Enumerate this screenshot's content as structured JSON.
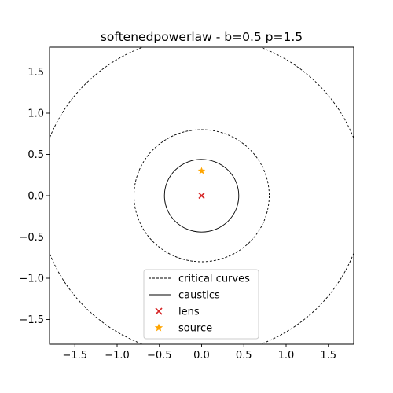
{
  "chart_data": {
    "type": "scatter",
    "title": "softenedpowerlaw - b=0.5 p=1.5",
    "xlabel": "",
    "ylabel": "",
    "xlim": [
      -1.8,
      1.8
    ],
    "ylim": [
      -1.8,
      1.8
    ],
    "grid": false,
    "legend_placement": "lower center",
    "x_ticks": [
      -1.5,
      -1.0,
      -0.5,
      0.0,
      0.5,
      1.0,
      1.5
    ],
    "y_ticks": [
      -1.5,
      -1.0,
      -0.5,
      0.0,
      0.5,
      1.0,
      1.5
    ],
    "x_tick_labels": [
      "−1.5",
      "−1.0",
      "−0.5",
      "0.0",
      "0.5",
      "1.0",
      "1.5"
    ],
    "y_tick_labels": [
      "−1.5",
      "−1.0",
      "−0.5",
      "0.0",
      "0.5",
      "1.0",
      "1.5"
    ],
    "critical_curves": {
      "center": [
        0,
        0
      ],
      "radii": [
        0.8,
        1.93
      ],
      "style": "dashed",
      "color": "#000000"
    },
    "caustics": {
      "center": [
        0,
        0
      ],
      "radii": [
        0.44
      ],
      "style": "solid",
      "color": "#000000"
    },
    "lens": {
      "x": 0.0,
      "y": 0.0,
      "marker": "x",
      "color": "#d62728"
    },
    "source": {
      "x": 0.0,
      "y": 0.3,
      "marker": "star",
      "color": "#ffa500"
    },
    "legend": [
      {
        "label": "critical curves",
        "kind": "dashed-line"
      },
      {
        "label": "caustics",
        "kind": "solid-line"
      },
      {
        "label": "lens",
        "kind": "x-marker",
        "color": "#d62728"
      },
      {
        "label": "source",
        "kind": "star-marker",
        "color": "#ffa500"
      }
    ]
  }
}
